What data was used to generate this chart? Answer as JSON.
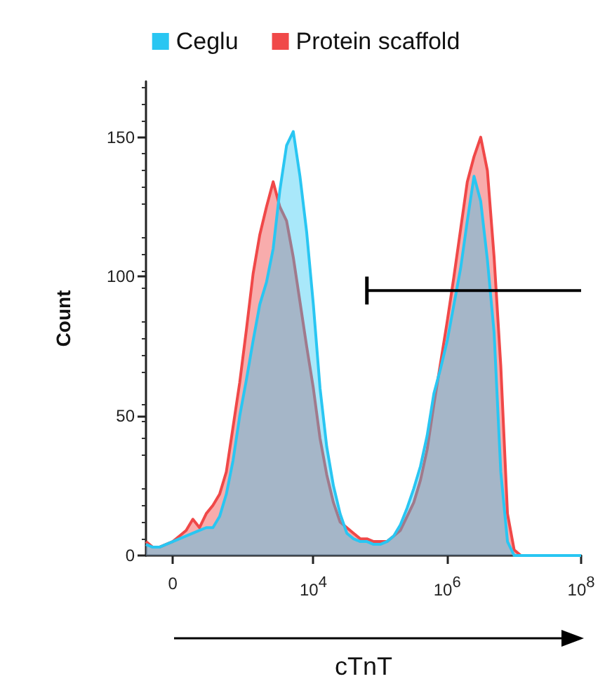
{
  "chart_data": {
    "type": "area",
    "xlabel": "cTnT",
    "ylabel": "Count",
    "legend": "top",
    "grid": false,
    "categories": [
      null,
      null,
      null,
      null,
      "0",
      null,
      null,
      null,
      null,
      null,
      null,
      null,
      null,
      null,
      null,
      null,
      null,
      null,
      null,
      null,
      null,
      null,
      null,
      null,
      null,
      "10$^{4}$",
      null,
      null,
      null,
      null,
      null,
      null,
      null,
      null,
      null,
      null,
      null,
      null,
      null,
      null,
      null,
      null,
      null,
      null,
      null,
      "10$^{6}$",
      null,
      null,
      null,
      null,
      null,
      null,
      null,
      null,
      null,
      null,
      null,
      null,
      null,
      null,
      null,
      null,
      null,
      null,
      null,
      "10$^{8}$"
    ],
    "ylim": [
      0,
      170
    ],
    "yticks": [
      0,
      50,
      100,
      150
    ],
    "series": [
      {
        "name": "Protein scaffold",
        "color": "#f04848",
        "values": [
          5,
          3,
          3,
          4,
          5,
          7,
          9,
          13,
          10,
          15,
          18,
          22,
          30,
          46,
          62,
          81,
          101,
          115,
          125,
          134,
          125,
          120,
          107,
          91,
          75,
          60,
          42,
          29,
          19,
          12,
          10,
          8,
          6,
          6,
          5,
          5,
          5,
          7,
          9,
          14,
          19,
          27,
          38,
          54,
          69,
          84,
          100,
          117,
          134,
          143,
          150,
          138,
          107,
          68,
          15,
          2,
          0,
          0,
          0,
          0,
          0,
          0,
          0,
          0,
          0,
          0
        ]
      },
      {
        "name": "Ceglu",
        "color": "#29c6f2",
        "values": [
          4,
          3,
          3,
          4,
          5,
          6,
          7,
          8,
          9,
          10,
          10,
          14,
          22,
          34,
          50,
          63,
          77,
          90,
          98,
          110,
          131,
          147,
          152,
          136,
          116,
          90,
          60,
          39,
          25,
          15,
          8,
          6,
          5,
          5,
          4,
          4,
          5,
          7,
          11,
          17,
          24,
          32,
          43,
          58,
          67,
          77,
          90,
          103,
          120,
          136,
          127,
          106,
          80,
          30,
          5,
          0,
          0,
          0,
          0,
          0,
          0,
          0,
          0,
          0,
          0,
          0
        ]
      },
      {
        "type": "line",
        "color": "#000000",
        "errors": [
          null,
          null,
          null,
          null,
          null,
          null,
          null,
          null,
          null,
          null,
          null,
          null,
          null,
          null,
          null,
          null,
          null,
          null,
          null,
          null,
          null,
          null,
          null,
          null,
          null,
          null,
          null,
          null,
          null,
          null,
          null,
          null,
          null,
          5,
          null,
          null,
          null,
          null,
          null,
          null,
          null,
          null,
          null,
          null,
          null,
          null,
          null,
          null,
          null,
          null,
          null,
          null,
          null,
          null,
          null,
          null,
          null,
          null,
          null,
          null,
          null,
          null,
          null,
          null,
          null,
          null
        ],
        "values": [
          null,
          null,
          null,
          null,
          null,
          null,
          null,
          null,
          null,
          null,
          null,
          null,
          null,
          null,
          null,
          null,
          null,
          null,
          null,
          null,
          null,
          null,
          null,
          null,
          null,
          null,
          null,
          null,
          null,
          null,
          null,
          null,
          null,
          95,
          95,
          95,
          95,
          95,
          95,
          95,
          95,
          95,
          95,
          95,
          95,
          95,
          95,
          95,
          95,
          95,
          95,
          95,
          95,
          95,
          95,
          95,
          95,
          95,
          95,
          95,
          95,
          95,
          95,
          95,
          95,
          95
        ]
      }
    ]
  }
}
